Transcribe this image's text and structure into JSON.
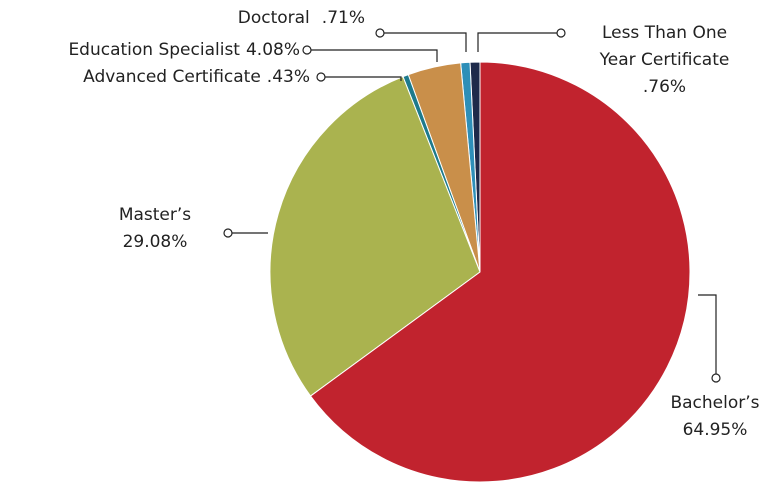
{
  "chart_data": {
    "type": "pie",
    "categories": [
      "Bachelor’s",
      "Master’s",
      "Advanced Certificate",
      "Education Specialist",
      "Doctoral",
      "Less Than One Year Certificate"
    ],
    "values": [
      64.95,
      29.08,
      0.43,
      4.08,
      0.71,
      0.76
    ],
    "value_labels": [
      "64.95%",
      "29.08%",
      ".43%",
      "4.08%",
      ".71%",
      ".76%"
    ],
    "colors": [
      "#c1232e",
      "#aab34f",
      "#1d7a8c",
      "#c98f4a",
      "#2e8fb8",
      "#1e2a4a"
    ]
  }
}
